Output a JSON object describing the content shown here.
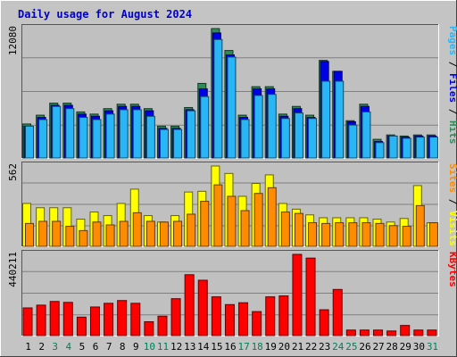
{
  "chart_data": [
    {
      "type": "bar",
      "title": "Daily usage for August 2024",
      "ymax_label": "12080",
      "categories": [
        "1",
        "2",
        "3",
        "4",
        "5",
        "6",
        "7",
        "8",
        "9",
        "10",
        "11",
        "12",
        "13",
        "14",
        "15",
        "16",
        "17",
        "18",
        "19",
        "20",
        "21",
        "22",
        "23",
        "24",
        "25",
        "26",
        "27",
        "28",
        "29",
        "30",
        "31"
      ],
      "weekend_days": [
        "3",
        "4",
        "10",
        "11",
        "17",
        "18",
        "24",
        "25",
        "31"
      ],
      "label_parts": [
        "Pages",
        "Files",
        "Hits"
      ],
      "separator": " / ",
      "colors": {
        "hits": "#2e8b57",
        "files": "#0000e6",
        "pages": "#29b6f6"
      },
      "series": [
        {
          "name": "Hits",
          "values": [
            3100,
            3900,
            5000,
            5000,
            4200,
            4000,
            4500,
            4900,
            4900,
            4500,
            2900,
            2900,
            4600,
            6800,
            11800,
            9800,
            3900,
            6500,
            6500,
            4000,
            4700,
            3900,
            8900,
            7900,
            3400,
            4900,
            1700,
            2100,
            2000,
            2100,
            2100
          ]
        },
        {
          "name": "Files",
          "values": [
            2900,
            3700,
            4800,
            4800,
            4000,
            3800,
            4300,
            4700,
            4700,
            4300,
            2700,
            2700,
            4400,
            6300,
            11400,
            9400,
            3700,
            6300,
            6300,
            3800,
            4500,
            3700,
            8800,
            7900,
            3300,
            4700,
            1500,
            2000,
            1900,
            2000,
            2000
          ]
        },
        {
          "name": "Pages",
          "values": [
            2900,
            3500,
            4700,
            4500,
            3700,
            3500,
            4000,
            4400,
            4400,
            3800,
            2600,
            2600,
            4300,
            5600,
            10800,
            9200,
            3500,
            5700,
            5800,
            3600,
            4100,
            3600,
            7000,
            7000,
            3000,
            4200,
            1400,
            2000,
            1800,
            1900,
            1900
          ]
        }
      ]
    },
    {
      "type": "bar",
      "ymax_label": "562",
      "categories": [
        "1",
        "2",
        "3",
        "4",
        "5",
        "6",
        "7",
        "8",
        "9",
        "10",
        "11",
        "12",
        "13",
        "14",
        "15",
        "16",
        "17",
        "18",
        "19",
        "20",
        "21",
        "22",
        "23",
        "24",
        "25",
        "26",
        "27",
        "28",
        "29",
        "30",
        "31"
      ],
      "label_parts": [
        "Sites",
        "Visits"
      ],
      "separator": " / ",
      "colors": {
        "visits": "#ffff00",
        "sites": "#ff8c00"
      },
      "series": [
        {
          "name": "Visits",
          "values": [
            300,
            270,
            270,
            270,
            190,
            240,
            215,
            300,
            400,
            215,
            170,
            215,
            380,
            385,
            562,
            510,
            350,
            440,
            500,
            300,
            260,
            220,
            200,
            200,
            200,
            200,
            190,
            170,
            195,
            425,
            165
          ]
        },
        {
          "name": "Sites",
          "values": [
            160,
            175,
            175,
            140,
            110,
            170,
            150,
            175,
            235,
            175,
            170,
            175,
            225,
            315,
            430,
            350,
            250,
            370,
            410,
            240,
            230,
            165,
            160,
            165,
            165,
            165,
            160,
            145,
            140,
            285,
            165
          ]
        }
      ]
    },
    {
      "type": "bar",
      "ymax_label": "440211",
      "categories": [
        "1",
        "2",
        "3",
        "4",
        "5",
        "6",
        "7",
        "8",
        "9",
        "10",
        "11",
        "12",
        "13",
        "14",
        "15",
        "16",
        "17",
        "18",
        "19",
        "20",
        "21",
        "22",
        "23",
        "24",
        "25",
        "26",
        "27",
        "28",
        "29",
        "30",
        "31"
      ],
      "label_parts": [
        "KBytes"
      ],
      "colors": {
        "kbytes": "#ff0000"
      },
      "series": [
        {
          "name": "KBytes",
          "values": [
            150000,
            165000,
            185000,
            180000,
            100000,
            155000,
            175000,
            190000,
            175000,
            75000,
            105000,
            200000,
            330000,
            300000,
            210000,
            168000,
            178000,
            130000,
            210000,
            215000,
            440211,
            420000,
            140000,
            250000,
            30000,
            30000,
            30000,
            25000,
            55000,
            30000,
            30000
          ]
        }
      ]
    }
  ]
}
